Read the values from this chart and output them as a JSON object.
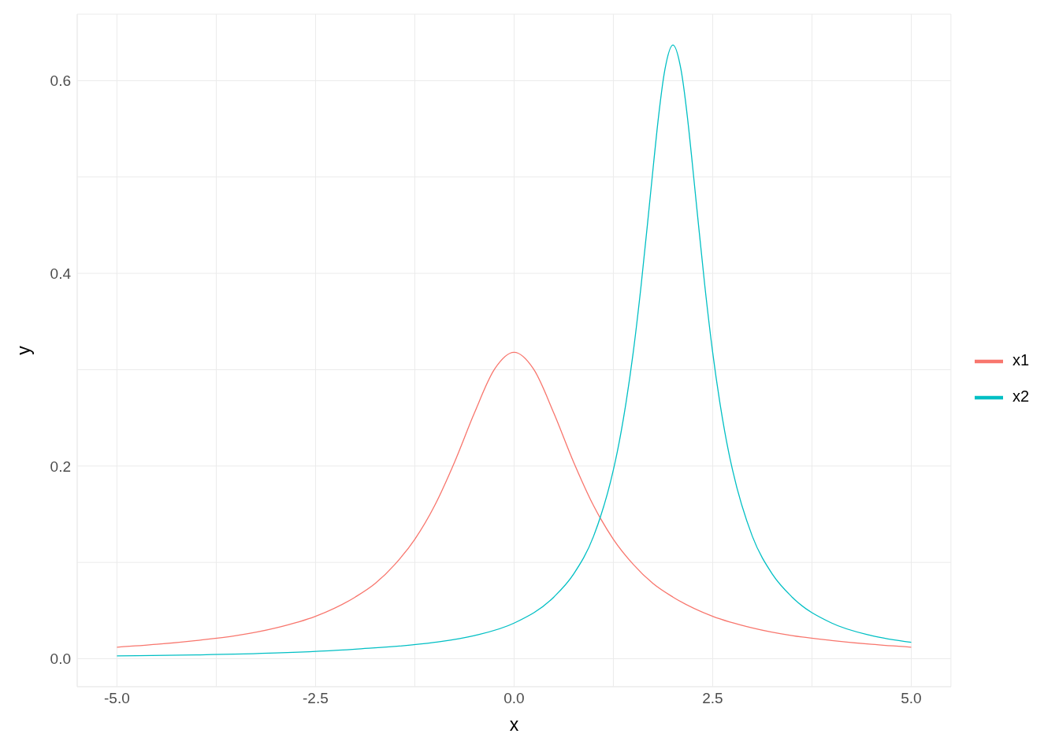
{
  "chart_data": {
    "type": "line",
    "xlabel": "x",
    "ylabel": "y",
    "xlim": [
      -5.5,
      5.5
    ],
    "ylim": [
      -0.029,
      0.669
    ],
    "xticks": [
      {
        "value": -5,
        "label": "-5.0"
      },
      {
        "value": -3.75,
        "label": null
      },
      {
        "value": -2.5,
        "label": "-2.5"
      },
      {
        "value": -1.25,
        "label": null
      },
      {
        "value": 0,
        "label": "0.0"
      },
      {
        "value": 1.25,
        "label": null
      },
      {
        "value": 2.5,
        "label": "2.5"
      },
      {
        "value": 3.75,
        "label": null
      },
      {
        "value": 5,
        "label": "5.0"
      }
    ],
    "yticks": [
      {
        "value": 0,
        "label": "0.0"
      },
      {
        "value": 0.1,
        "label": null
      },
      {
        "value": 0.2,
        "label": "0.2"
      },
      {
        "value": 0.3,
        "label": null
      },
      {
        "value": 0.4,
        "label": "0.4"
      },
      {
        "value": 0.5,
        "label": null
      },
      {
        "value": 0.6,
        "label": "0.6"
      }
    ],
    "grid": true,
    "legend": "right",
    "marker": "none",
    "line_style": "solid",
    "series": [
      {
        "name": "x1",
        "color": "#f8766d",
        "x": [
          -5,
          -4.5,
          -4,
          -3.5,
          -3,
          -2.5,
          -2,
          -1.75,
          -1.5,
          -1.25,
          -1,
          -0.75,
          -0.5,
          -0.25,
          0,
          0.25,
          0.5,
          0.75,
          1,
          1.25,
          1.5,
          1.75,
          2,
          2.5,
          3,
          3.5,
          4,
          4.5,
          5
        ],
        "values": [
          0.012,
          0.015,
          0.019,
          0.024,
          0.032,
          0.044,
          0.064,
          0.078,
          0.098,
          0.124,
          0.159,
          0.204,
          0.255,
          0.3,
          0.318,
          0.3,
          0.255,
          0.204,
          0.159,
          0.124,
          0.098,
          0.078,
          0.064,
          0.044,
          0.032,
          0.024,
          0.019,
          0.015,
          0.012
        ]
      },
      {
        "name": "x2",
        "color": "#00bfc4",
        "x": [
          -5,
          -4,
          -3,
          -2,
          -1,
          -0.5,
          0,
          0.5,
          0.75,
          1,
          1.25,
          1.3,
          1.4,
          1.5,
          1.6,
          1.7,
          1.75,
          1.8,
          1.9,
          2,
          2.1,
          2.2,
          2.25,
          2.3,
          2.4,
          2.5,
          2.6,
          2.7,
          2.75,
          3,
          3.25,
          3.5,
          4,
          4.5,
          5
        ],
        "values": [
          0.003,
          0.004,
          0.006,
          0.01,
          0.017,
          0.024,
          0.037,
          0.064,
          0.088,
          0.127,
          0.196,
          0.215,
          0.261,
          0.318,
          0.388,
          0.468,
          0.509,
          0.549,
          0.612,
          0.637,
          0.612,
          0.549,
          0.509,
          0.468,
          0.388,
          0.318,
          0.261,
          0.215,
          0.196,
          0.127,
          0.088,
          0.064,
          0.037,
          0.024,
          0.017
        ]
      }
    ]
  }
}
